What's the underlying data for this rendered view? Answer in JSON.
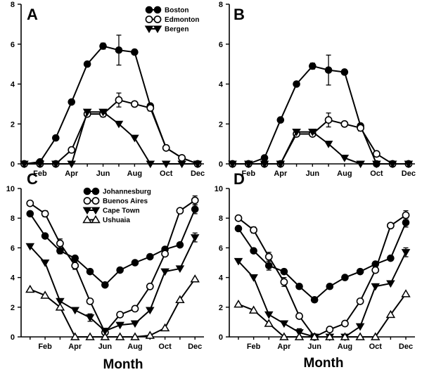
{
  "chart_data": [
    {
      "panel": "A",
      "type": "line",
      "x": [
        1,
        2,
        3,
        4,
        5,
        6,
        7,
        8,
        9,
        10,
        11,
        12
      ],
      "xtick_labels": [
        "Feb",
        "Apr",
        "Jun",
        "Aug",
        "Oct",
        "Dec"
      ],
      "xtick_months": [
        2,
        4,
        6,
        8,
        10,
        12
      ],
      "ylim": [
        0,
        8
      ],
      "yticks": [
        0,
        2,
        4,
        6,
        8
      ],
      "legend_position": "top-right",
      "series": [
        {
          "name": "Boston",
          "marker": "filled-circle",
          "values": [
            0,
            0.1,
            1.3,
            3.1,
            5.0,
            5.9,
            5.7,
            5.6,
            2.9,
            0.8,
            0.3,
            0
          ],
          "errors": [
            0,
            0,
            0,
            0,
            0,
            0.15,
            0.75,
            0,
            0,
            0,
            0,
            0
          ]
        },
        {
          "name": "Edmonton",
          "marker": "open-circle",
          "values": [
            0,
            0,
            0,
            0.7,
            2.5,
            2.5,
            3.2,
            3.0,
            2.8,
            0.8,
            0.3,
            0
          ],
          "errors": [
            0,
            0,
            0,
            0,
            0,
            0.15,
            0.35,
            0,
            0.15,
            0,
            0,
            0
          ]
        },
        {
          "name": "Bergen",
          "marker": "filled-triangle-down",
          "values": [
            0,
            0,
            0,
            0,
            2.6,
            2.6,
            2.0,
            1.3,
            0,
            0,
            0,
            0
          ],
          "errors": [
            0,
            0,
            0,
            0,
            0,
            0,
            0,
            0,
            0,
            0,
            0,
            0
          ]
        }
      ]
    },
    {
      "panel": "B",
      "type": "line",
      "x": [
        1,
        2,
        3,
        4,
        5,
        6,
        7,
        8,
        9,
        10,
        11,
        12
      ],
      "xtick_labels": [
        "Feb",
        "Apr",
        "Jun",
        "Aug",
        "Oct",
        "Dec"
      ],
      "xtick_months": [
        2,
        4,
        6,
        8,
        10,
        12
      ],
      "ylim": [
        0,
        8
      ],
      "yticks": [
        0,
        2,
        4,
        6,
        8
      ],
      "series": [
        {
          "name": "Boston",
          "marker": "filled-circle",
          "values": [
            0,
            0,
            0.3,
            2.2,
            4.0,
            4.9,
            4.7,
            4.6,
            1.9,
            0,
            0,
            0
          ],
          "errors": [
            0,
            0,
            0,
            0,
            0,
            0.15,
            0.75,
            0,
            0,
            0,
            0,
            0
          ]
        },
        {
          "name": "Edmonton",
          "marker": "open-circle",
          "values": [
            0,
            0,
            0,
            0,
            1.5,
            1.5,
            2.2,
            2.0,
            1.8,
            0.5,
            0,
            0
          ],
          "errors": [
            0,
            0,
            0,
            0,
            0,
            0,
            0.35,
            0,
            0.15,
            0,
            0,
            0
          ]
        },
        {
          "name": "Bergen",
          "marker": "filled-triangle-down",
          "values": [
            0,
            0,
            0,
            0,
            1.6,
            1.6,
            1.0,
            0.3,
            0,
            0,
            0,
            0
          ],
          "errors": [
            0,
            0,
            0,
            0,
            0,
            0,
            0,
            0,
            0,
            0,
            0,
            0
          ]
        }
      ]
    },
    {
      "panel": "C",
      "type": "line",
      "x": [
        1,
        2,
        3,
        4,
        5,
        6,
        7,
        8,
        9,
        10,
        11,
        12
      ],
      "xtick_labels": [
        "Feb",
        "Apr",
        "Jun",
        "Aug",
        "Oct",
        "Dec"
      ],
      "xtick_months": [
        2,
        4,
        6,
        8,
        10,
        12
      ],
      "ylim": [
        0,
        10
      ],
      "yticks": [
        0,
        2,
        4,
        6,
        8,
        10
      ],
      "legend_position": "top-left",
      "series": [
        {
          "name": "Johannesburg",
          "marker": "filled-circle",
          "values": [
            8.3,
            6.8,
            5.8,
            5.3,
            4.4,
            3.5,
            4.5,
            5.0,
            5.4,
            5.9,
            6.2,
            8.6
          ],
          "errors": [
            0,
            0,
            0.2,
            0,
            0,
            0,
            0,
            0,
            0,
            0,
            0,
            0.3
          ]
        },
        {
          "name": "Buenos Aires",
          "marker": "open-circle",
          "values": [
            9.0,
            8.3,
            6.3,
            4.8,
            2.4,
            0.3,
            1.5,
            1.9,
            3.4,
            5.6,
            8.5,
            9.2
          ],
          "errors": [
            0,
            0.2,
            0.3,
            0.25,
            0,
            0,
            0,
            0,
            0,
            0,
            0,
            0.3
          ]
        },
        {
          "name": "Cape Town",
          "marker": "filled-triangle-down",
          "values": [
            6.1,
            5.0,
            2.4,
            1.8,
            1.3,
            0.4,
            0.8,
            0.9,
            1.8,
            4.4,
            4.6,
            6.7
          ],
          "errors": [
            0,
            0,
            0,
            0,
            0.25,
            0,
            0,
            0,
            0,
            0,
            0,
            0.3
          ]
        },
        {
          "name": "Ushuaia",
          "marker": "open-triangle-up",
          "values": [
            3.2,
            2.8,
            2.0,
            0,
            0,
            0,
            0,
            0,
            0.1,
            0.6,
            2.5,
            3.9
          ],
          "errors": [
            0,
            0,
            0,
            0,
            0,
            0,
            0,
            0,
            0,
            0,
            0,
            0
          ]
        }
      ]
    },
    {
      "panel": "D",
      "type": "line",
      "x": [
        1,
        2,
        3,
        4,
        5,
        6,
        7,
        8,
        9,
        10,
        11,
        12
      ],
      "xtick_labels": [
        "Feb",
        "Apr",
        "Jun",
        "Aug",
        "Oct",
        "Dec"
      ],
      "xtick_months": [
        2,
        4,
        6,
        8,
        10,
        12
      ],
      "ylim": [
        0,
        10
      ],
      "yticks": [
        0,
        2,
        4,
        6,
        8,
        10
      ],
      "series": [
        {
          "name": "Johannesburg",
          "marker": "filled-circle",
          "values": [
            7.3,
            5.8,
            4.8,
            4.4,
            3.4,
            2.5,
            3.4,
            4.0,
            4.4,
            4.9,
            5.3,
            7.7
          ],
          "errors": [
            0,
            0,
            0.3,
            0,
            0,
            0,
            0,
            0,
            0,
            0,
            0,
            0.3
          ]
        },
        {
          "name": "Buenos Aires",
          "marker": "open-circle",
          "values": [
            8.0,
            7.2,
            5.4,
            3.7,
            1.4,
            0,
            0.5,
            0.9,
            2.4,
            4.5,
            7.5,
            8.2
          ],
          "errors": [
            0,
            0.2,
            0.3,
            0.3,
            0,
            0,
            0,
            0,
            0,
            0,
            0,
            0.3
          ]
        },
        {
          "name": "Cape Town",
          "marker": "filled-triangle-down",
          "values": [
            5.1,
            4.0,
            1.5,
            0.9,
            0.3,
            0,
            0,
            0,
            0.7,
            3.4,
            3.6,
            5.7
          ],
          "errors": [
            0,
            0,
            0,
            0,
            0.25,
            0,
            0,
            0,
            0,
            0,
            0,
            0.3
          ]
        },
        {
          "name": "Ushuaia",
          "marker": "open-triangle-up",
          "values": [
            2.2,
            1.8,
            0.9,
            0,
            0,
            0,
            0,
            0,
            0,
            0,
            1.5,
            2.9
          ],
          "errors": [
            0,
            0,
            0,
            0,
            0,
            0,
            0,
            0,
            0,
            0,
            0,
            0
          ]
        }
      ]
    }
  ],
  "labels": {
    "panel_a": "A",
    "panel_b": "B",
    "panel_c": "C",
    "panel_d": "D",
    "xaxis_title_left": "Month",
    "xaxis_title_right": "Month"
  }
}
